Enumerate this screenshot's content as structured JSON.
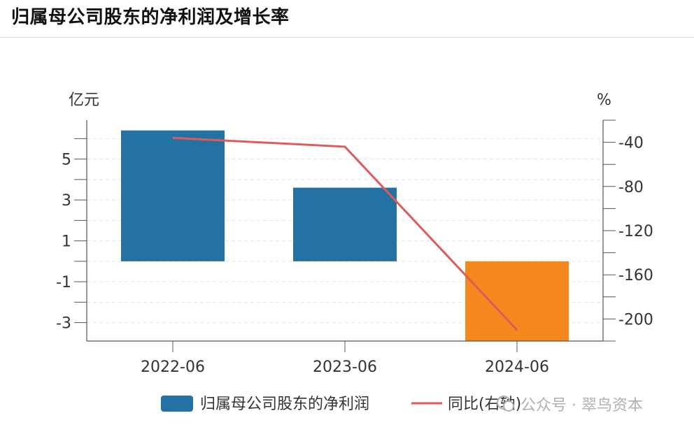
{
  "header": {
    "title": "归属母公司股东的净利润及增长率"
  },
  "watermark": {
    "text": "公众号 · 翠鸟资本"
  },
  "chart_data": {
    "type": "bar",
    "categories": [
      "2022-06",
      "2023-06",
      "2024-06"
    ],
    "series": [
      {
        "name": "归属母公司股东的净利润",
        "type": "bar",
        "axis": "left",
        "values": [
          6.4,
          3.6,
          -3.9
        ],
        "colors": [
          "#2471a3",
          "#2471a3",
          "#f4881e"
        ]
      },
      {
        "name": "同比(右轴)",
        "type": "line",
        "axis": "right",
        "color": "#e05a5a",
        "values": [
          -36,
          -44,
          -210
        ]
      }
    ],
    "ylabel_left": "亿元",
    "ylabel_right": "%",
    "yticks_left": [
      5,
      3,
      1,
      -1,
      -3
    ],
    "ylim_left": [
      -3.9,
      6.9
    ],
    "yticks_right": [
      -40,
      -80,
      -120,
      -160,
      -200
    ],
    "ylim_right": [
      -220,
      -20
    ],
    "grid": true,
    "legend": "bottom"
  }
}
